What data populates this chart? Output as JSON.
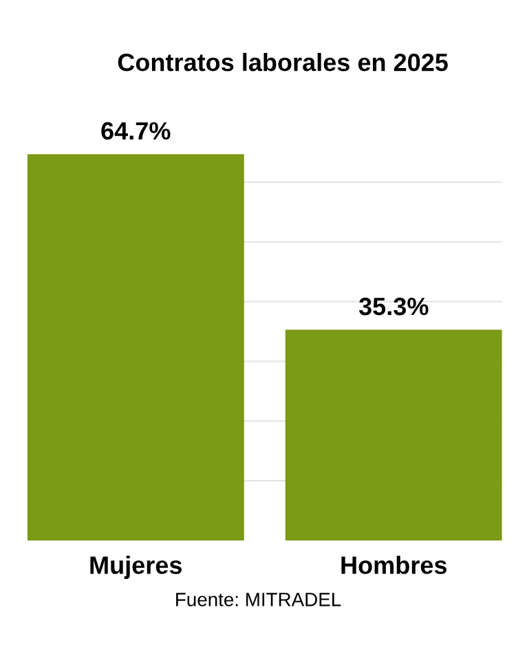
{
  "chart_data": {
    "type": "bar",
    "title": "Contratos laborales en 2025",
    "categories": [
      "Mujeres",
      "Hombres"
    ],
    "values": [
      64.7,
      35.3
    ],
    "value_labels": [
      "64.7%",
      "35.3%"
    ],
    "color": "#7b9a16",
    "yticks": [
      {
        "value": 10,
        "label": null
      },
      {
        "value": 20,
        "label": null
      },
      {
        "value": 30,
        "label": null
      },
      {
        "value": 40,
        "label": null
      },
      {
        "value": 50,
        "label": null
      },
      {
        "value": 60,
        "label": null
      }
    ],
    "tick_labels": "x",
    "grid": "y",
    "annotations": [
      "Fuente: MITRADEL"
    ]
  }
}
